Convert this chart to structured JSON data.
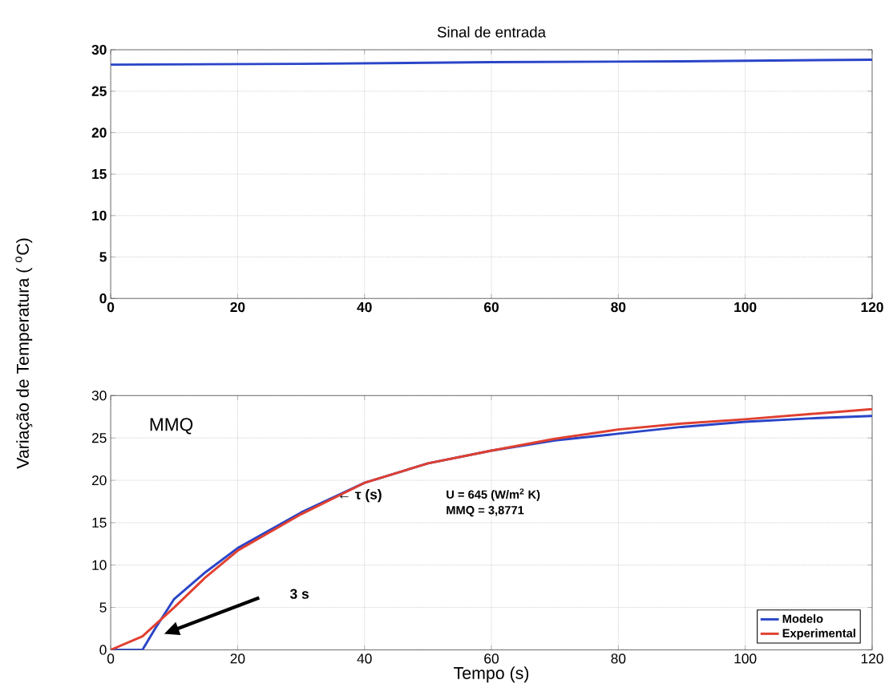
{
  "chart_data": [
    {
      "type": "line",
      "title": "Sinal de entrada",
      "ylabel": "Variação de Temperatura ( $^{o}$C)",
      "xlim": [
        0,
        120
      ],
      "ylim": [
        0,
        30
      ],
      "xticks": [
        0,
        20,
        40,
        60,
        80,
        100,
        120
      ],
      "yticks": [
        0,
        5,
        10,
        15,
        20,
        25,
        30
      ],
      "grid": true,
      "line_style": "solid",
      "series": [
        {
          "color": "#2a45c8",
          "x": [
            0,
            30,
            60,
            90,
            120
          ],
          "values": [
            28.2,
            28.3,
            28.5,
            28.6,
            28.8
          ]
        }
      ]
    },
    {
      "type": "line",
      "xlabel": "Tempo (s)",
      "xlim": [
        0,
        120
      ],
      "ylim": [
        0,
        30
      ],
      "xticks": [
        0,
        20,
        40,
        60,
        80,
        100,
        120
      ],
      "yticks": [
        0,
        5,
        10,
        15,
        20,
        25,
        30
      ],
      "grid": true,
      "legend": "bottom right",
      "line_style": "solid",
      "annotations": [
        "MMQ",
        "U = 645 (W/m$^{2}$ K)",
        "MMQ =  3,8771",
        {
          "text": "← τ (s)",
          "x": 35.5,
          "y": 18.2
        },
        "3 s"
      ],
      "series": [
        {
          "name": "Modelo",
          "color": "#2a45c8",
          "x": [
            0,
            5,
            7,
            10,
            15,
            20,
            30,
            40,
            50,
            60,
            70,
            80,
            90,
            100,
            110,
            120
          ],
          "values": [
            0,
            0,
            2.5,
            6,
            9.2,
            12,
            16.2,
            19.7,
            22,
            23.5,
            24.7,
            25.5,
            26.3,
            26.9,
            27.3,
            27.6
          ]
        },
        {
          "name": "Experimental",
          "color": "#e04030",
          "x": [
            0,
            5,
            10,
            15,
            20,
            30,
            40,
            50,
            60,
            70,
            80,
            90,
            100,
            110,
            120
          ],
          "values": [
            0,
            1.6,
            5,
            8.6,
            11.7,
            16,
            19.7,
            22,
            23.5,
            24.9,
            26,
            26.7,
            27.2,
            27.8,
            28.4
          ]
        }
      ]
    }
  ]
}
